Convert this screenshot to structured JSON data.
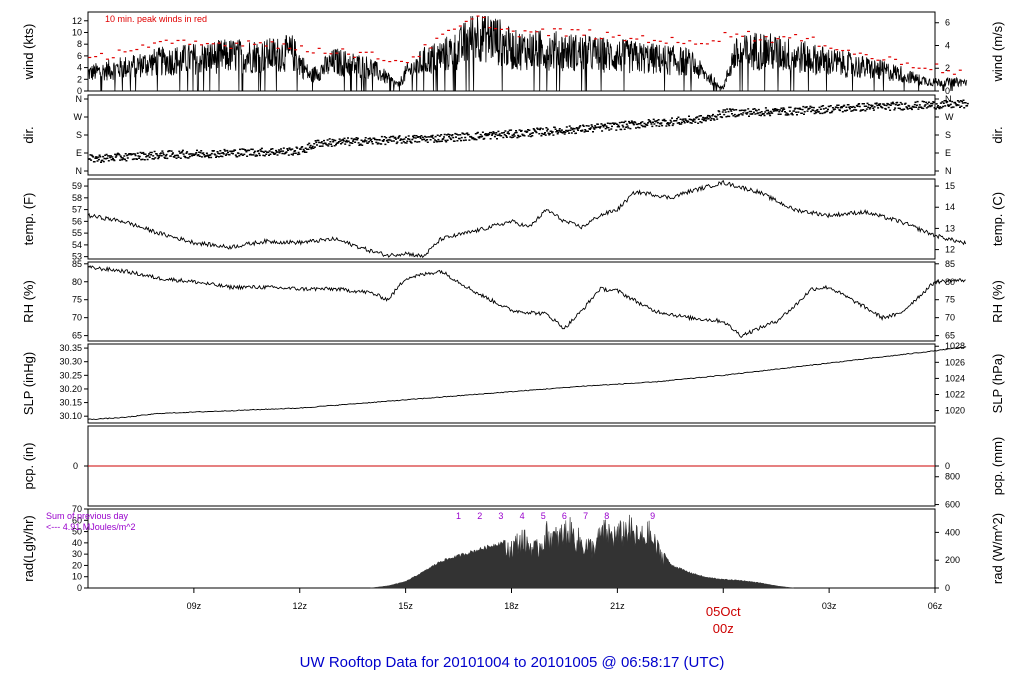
{
  "title": "UW Rooftop Data for 20101004  to  20101005 @ 06:58:17  (UTC)",
  "colors": {
    "axis": "#000000",
    "peak": "#e00000",
    "precip_line": "#cc0000",
    "rad_fill": "#333333",
    "annotation": "#9900cc",
    "title": "#0000cc",
    "date_marker": "#cc0000"
  },
  "x_axis": {
    "unit": "hours UTC",
    "range": [
      6.0,
      30.0
    ],
    "ticks": [
      {
        "t": 9,
        "label": "09z"
      },
      {
        "t": 12,
        "label": "12z"
      },
      {
        "t": 15,
        "label": "15z"
      },
      {
        "t": 18,
        "label": "18z"
      },
      {
        "t": 21,
        "label": "21z"
      },
      {
        "t": 27,
        "label": "03z"
      },
      {
        "t": 30,
        "label": "06z"
      }
    ],
    "date_marker": {
      "t": 24,
      "line1": "05Oct",
      "line2": "00z"
    }
  },
  "panels": {
    "wind": {
      "left_label": "wind (kts)",
      "right_label": "wind (m/s)",
      "note": "10 min. peak winds in red",
      "left_ticks": [
        "0",
        "2",
        "4",
        "6",
        "8",
        "10",
        "12"
      ],
      "right_ticks": [
        "0",
        "2",
        "4",
        "6"
      ]
    },
    "dir": {
      "left_label": "dir.",
      "right_label": "dir.",
      "ticks": [
        "N",
        "E",
        "S",
        "W",
        "N"
      ]
    },
    "temp": {
      "left_label": "temp. (F)",
      "right_label": "temp. (C)",
      "left_ticks": [
        "53",
        "54",
        "55",
        "56",
        "57",
        "58",
        "59"
      ],
      "right_ticks": [
        "12",
        "13",
        "14",
        "15"
      ]
    },
    "rh": {
      "left_label": "RH (%)",
      "right_label": "RH (%)",
      "left_ticks": [
        "65",
        "70",
        "75",
        "80",
        "85"
      ],
      "right_ticks": [
        "65",
        "70",
        "75",
        "80",
        "85"
      ]
    },
    "slp": {
      "left_label": "SLP (inHg)",
      "right_label": "SLP (hPa)",
      "left_ticks": [
        "30.10",
        "30.15",
        "30.20",
        "30.25",
        "30.30",
        "30.35"
      ],
      "right_ticks": [
        "1020",
        "1022",
        "1024",
        "1026",
        "1028"
      ]
    },
    "pcp": {
      "left_label": "pcp. (in)",
      "right_label": "pcp. (mm)",
      "left_ticks": [
        "0"
      ],
      "right_ticks": [
        "0"
      ]
    },
    "rad": {
      "left_label": "rad(Lgly/hr)",
      "right_label": "rad (W/m^2)",
      "left_ticks": [
        "0",
        "10",
        "20",
        "30",
        "40",
        "50",
        "60",
        "70"
      ],
      "right_ticks": [
        "0",
        "200",
        "400",
        "600",
        "800"
      ],
      "sum_line1": "Sum of previous day",
      "sum_line2": "<--- 4.91 MJoules/m^2",
      "hour_marks": [
        "1",
        "2",
        "3",
        "4",
        "5",
        "6",
        "7",
        "8",
        "9"
      ]
    }
  },
  "chart_data": {
    "type": "line",
    "x_unit": "hour UTC (24 = 05Oct 00z)",
    "series": [
      {
        "key": "wind_kts",
        "x": [
          6.0,
          7.0,
          8.0,
          9.0,
          10.0,
          11.0,
          11.8,
          12.3,
          13.0,
          14.0,
          14.8,
          15.0,
          15.5,
          16.0,
          16.5,
          17.0,
          17.5,
          18.0,
          19.0,
          20.0,
          21.0,
          22.0,
          23.0,
          24.0,
          24.3,
          25.0,
          26.0,
          27.0,
          28.0,
          29.0,
          29.5,
          30.0,
          30.9
        ],
        "values": [
          3,
          4,
          5,
          5.5,
          6,
          6,
          6.5,
          2.5,
          5,
          4,
          1,
          3,
          5,
          6,
          7,
          10,
          9,
          7,
          7,
          6.5,
          6,
          5.5,
          5,
          0.5,
          6,
          7,
          6,
          5,
          4,
          3,
          2,
          1.5,
          1.5
        ]
      },
      {
        "key": "wind_peak_kts",
        "x": [
          6.0,
          7.0,
          8.0,
          9.0,
          10.0,
          11.0,
          12.0,
          13.0,
          14.0,
          15.0,
          16.0,
          17.0,
          18.0,
          19.0,
          20.0,
          21.0,
          22.0,
          23.0,
          24.5,
          25.0,
          26.0,
          27.0,
          28.0,
          29.0,
          30.0,
          30.8
        ],
        "values": [
          5,
          7,
          8,
          8,
          8,
          8.5,
          7,
          7,
          6,
          5,
          9,
          12.5,
          10,
          10,
          10,
          9,
          9,
          8,
          10,
          9,
          9,
          8,
          6,
          5,
          4,
          3
        ]
      },
      {
        "key": "dir_deg",
        "x": [
          6.0,
          8.0,
          10.0,
          12.0,
          12.5,
          14.0,
          16.0,
          18.0,
          20.0,
          22.0,
          23.5,
          24.0,
          26.0,
          28.0,
          30.9
        ],
        "values": [
          60,
          80,
          90,
          100,
          140,
          150,
          165,
          185,
          210,
          240,
          260,
          290,
          300,
          320,
          335
        ]
      },
      {
        "key": "temp_F",
        "x": [
          6.0,
          7.0,
          8.0,
          9.0,
          10.0,
          11.0,
          12.0,
          13.0,
          14.0,
          14.5,
          15.0,
          15.5,
          16.0,
          17.0,
          18.0,
          18.5,
          19.0,
          19.5,
          20.0,
          20.5,
          21.0,
          21.5,
          22.0,
          22.5,
          23.0,
          24.0,
          25.0,
          26.0,
          27.0,
          28.0,
          29.0,
          30.0,
          30.9
        ],
        "values": [
          56.5,
          56.0,
          55.0,
          54.2,
          53.8,
          54.3,
          54.2,
          54.5,
          53.5,
          53.1,
          53.3,
          53.0,
          54.5,
          55.2,
          56.0,
          55.5,
          57.0,
          56.0,
          55.5,
          56.5,
          57.0,
          58.5,
          58.3,
          58.0,
          58.5,
          59.3,
          58.5,
          57.0,
          56.5,
          56.8,
          56.0,
          54.8,
          54.1
        ]
      },
      {
        "key": "rh_pct",
        "x": [
          6.0,
          7.0,
          8.0,
          9.0,
          10.0,
          11.0,
          12.0,
          13.0,
          14.0,
          14.5,
          15.0,
          15.5,
          16.0,
          17.0,
          18.0,
          19.0,
          19.5,
          20.0,
          20.5,
          21.0,
          22.0,
          23.0,
          24.0,
          24.5,
          25.0,
          25.5,
          26.0,
          26.5,
          27.0,
          28.0,
          28.5,
          29.0,
          30.0,
          30.9
        ],
        "values": [
          84.0,
          83.0,
          81.0,
          80.0,
          78.5,
          78.5,
          78.0,
          78.0,
          77.0,
          75.0,
          81.0,
          82.0,
          83.0,
          77.0,
          72.0,
          71.0,
          67.0,
          72.0,
          78.0,
          77.5,
          72.0,
          70.0,
          69.0,
          65.0,
          67.0,
          69.0,
          73.0,
          78.0,
          78.5,
          73.0,
          70.0,
          71.0,
          80.0,
          80.5
        ]
      },
      {
        "key": "slp_inHg",
        "x": [
          6.0,
          7.0,
          8.0,
          10.0,
          12.0,
          14.0,
          16.0,
          18.0,
          20.0,
          22.0,
          24.0,
          26.0,
          28.0,
          30.0,
          30.9
        ],
        "values": [
          30.088,
          30.095,
          30.11,
          30.12,
          30.13,
          30.15,
          30.17,
          30.19,
          30.21,
          30.225,
          30.25,
          30.28,
          30.31,
          30.34,
          30.355
        ]
      },
      {
        "key": "pcp_in",
        "x": [
          6.0,
          30.9
        ],
        "values": [
          0,
          0
        ]
      },
      {
        "key": "rad_lgly_hr",
        "x": [
          14.0,
          14.5,
          15.0,
          15.5,
          16.0,
          16.5,
          17.0,
          17.5,
          18.0,
          18.3,
          18.7,
          19.0,
          19.3,
          19.6,
          20.0,
          20.3,
          20.6,
          21.0,
          21.3,
          21.6,
          21.9,
          22.2,
          22.5,
          23.0,
          23.5,
          24.0,
          24.5,
          25.0,
          25.5,
          26.0
        ],
        "values": [
          0,
          2,
          6,
          15,
          25,
          30,
          35,
          40,
          45,
          55,
          42,
          60,
          55,
          65,
          50,
          45,
          62,
          58,
          67,
          55,
          60,
          40,
          22,
          15,
          10,
          8,
          7,
          5,
          2,
          0
        ]
      }
    ]
  }
}
